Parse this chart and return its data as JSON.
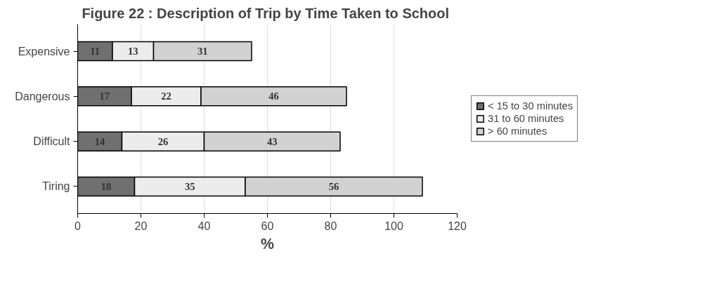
{
  "chart_data": {
    "type": "bar",
    "orientation": "horizontal",
    "stacked": true,
    "title": "Figure 22 : Description of Trip  by Time Taken to School",
    "xlabel": "%",
    "categories": [
      "Expensive",
      "Dangerous",
      "Difficult",
      "Tiring"
    ],
    "series": [
      {
        "name": "< 15 to 30 minutes",
        "color": "#707070",
        "values": [
          11,
          17,
          14,
          18
        ]
      },
      {
        "name": "31 to 60 minutes",
        "color": "#ececec",
        "values": [
          13,
          22,
          26,
          35
        ]
      },
      {
        "name": "> 60 minutes",
        "color": "#d2d2d2",
        "values": [
          31,
          46,
          43,
          56
        ]
      }
    ],
    "xlim": [
      0,
      120
    ],
    "xticks": [
      0,
      20,
      40,
      60,
      80,
      100,
      120
    ],
    "grid": "x",
    "legend": "right",
    "data_labels": true
  }
}
